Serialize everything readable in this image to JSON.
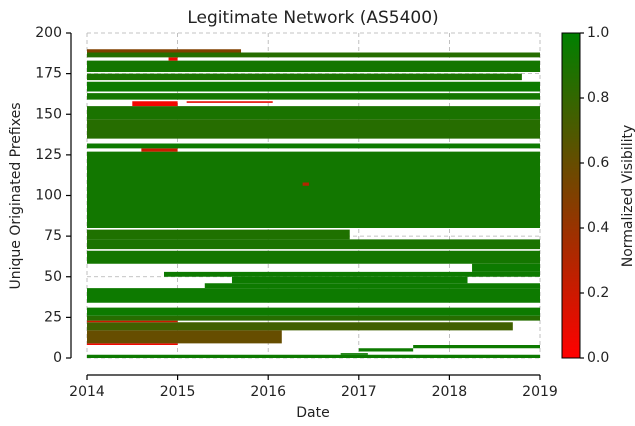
{
  "chart_data": {
    "type": "segments",
    "title": "Legitimate Network (AS5400)",
    "x_label": "Date",
    "y_label": "Unique Originated Prefixes",
    "colorbar_label": "Normalized Visibility",
    "cmap": [
      "#ff0000",
      "#008000"
    ],
    "clim": [
      0,
      1
    ],
    "cticks": [
      {
        "value": 0,
        "label": "0.0"
      },
      {
        "value": 0.2,
        "label": "0.2"
      },
      {
        "value": 0.4,
        "label": "0.4"
      },
      {
        "value": 0.6,
        "label": "0.6"
      },
      {
        "value": 0.8,
        "label": "0.8"
      },
      {
        "value": 1,
        "label": "1.0"
      }
    ],
    "xlim": [
      2014,
      2019
    ],
    "xticks": [
      2014,
      2015,
      2016,
      2017,
      2018,
      2019
    ],
    "ylim": [
      0,
      200
    ],
    "yticks": [
      0,
      25,
      50,
      75,
      100,
      125,
      150,
      175,
      200
    ],
    "grid": true,
    "segments": [
      {
        "x0": 2014,
        "x1": 2019,
        "y0": 0,
        "y1": 2,
        "v": 0.95
      },
      {
        "x0": 2016.8,
        "x1": 2017.1,
        "y0": 2,
        "y1": 3,
        "v": 0.95
      },
      {
        "x0": 2017.0,
        "x1": 2017.6,
        "y0": 4,
        "y1": 6,
        "v": 0.95
      },
      {
        "x0": 2017.6,
        "x1": 2019,
        "y0": 6,
        "y1": 8,
        "v": 0.95
      },
      {
        "x0": 2014,
        "x1": 2015,
        "y0": 8,
        "y1": 9,
        "v": 0.05
      },
      {
        "x0": 2014,
        "x1": 2016.15,
        "y0": 9,
        "y1": 17,
        "v": 0.6
      },
      {
        "x0": 2014,
        "x1": 2018.7,
        "y0": 17,
        "y1": 22,
        "v": 0.75
      },
      {
        "x0": 2014,
        "x1": 2015,
        "y0": 22,
        "y1": 23,
        "v": 0.2
      },
      {
        "x0": 2014,
        "x1": 2019,
        "y0": 23,
        "y1": 26,
        "v": 0.85
      },
      {
        "x0": 2014,
        "x1": 2019,
        "y0": 26,
        "y1": 31,
        "v": 0.95
      },
      {
        "x0": 2014,
        "x1": 2019,
        "y0": 34,
        "y1": 43,
        "v": 0.95
      },
      {
        "x0": 2015.3,
        "x1": 2019,
        "y0": 43,
        "y1": 46,
        "v": 0.95
      },
      {
        "x0": 2015.6,
        "x1": 2018.2,
        "y0": 46,
        "y1": 50,
        "v": 0.95
      },
      {
        "x0": 2014.85,
        "x1": 2019,
        "y0": 50,
        "y1": 53,
        "v": 0.95
      },
      {
        "x0": 2018.25,
        "x1": 2019,
        "y0": 53,
        "y1": 58,
        "v": 0.95
      },
      {
        "x0": 2014,
        "x1": 2019,
        "y0": 58,
        "y1": 66,
        "v": 0.92
      },
      {
        "x0": 2014,
        "x1": 2019,
        "y0": 67,
        "y1": 73,
        "v": 0.9
      },
      {
        "x0": 2014,
        "x1": 2016.9,
        "y0": 73,
        "y1": 79,
        "v": 0.88
      },
      {
        "x0": 2014,
        "x1": 2019,
        "y0": 80,
        "y1": 127,
        "v": 0.93
      },
      {
        "x0": 2016.38,
        "x1": 2016.45,
        "y0": 106,
        "y1": 108,
        "v": 0.3
      },
      {
        "x0": 2014.6,
        "x1": 2015,
        "y0": 127,
        "y1": 129,
        "v": 0.2
      },
      {
        "x0": 2014,
        "x1": 2019,
        "y0": 129,
        "y1": 132,
        "v": 0.95
      },
      {
        "x0": 2014,
        "x1": 2019,
        "y0": 135,
        "y1": 147,
        "v": 0.85
      },
      {
        "x0": 2014,
        "x1": 2019,
        "y0": 147,
        "y1": 155,
        "v": 0.9
      },
      {
        "x0": 2014.5,
        "x1": 2015,
        "y0": 155,
        "y1": 158,
        "v": 0.05
      },
      {
        "x0": 2015.1,
        "x1": 2016.05,
        "y0": 157,
        "y1": 158,
        "v": 0.1
      },
      {
        "x0": 2014,
        "x1": 2019,
        "y0": 159,
        "y1": 163,
        "v": 0.92
      },
      {
        "x0": 2014,
        "x1": 2019,
        "y0": 164,
        "y1": 170,
        "v": 0.95
      },
      {
        "x0": 2014,
        "x1": 2018.8,
        "y0": 171,
        "y1": 175,
        "v": 0.9
      },
      {
        "x0": 2014,
        "x1": 2019,
        "y0": 176,
        "y1": 183,
        "v": 0.92
      },
      {
        "x0": 2014.9,
        "x1": 2015,
        "y0": 183,
        "y1": 185,
        "v": 0.05
      },
      {
        "x0": 2014,
        "x1": 2019,
        "y0": 185,
        "y1": 188,
        "v": 0.85
      },
      {
        "x0": 2014,
        "x1": 2015.7,
        "y0": 188,
        "y1": 190,
        "v": 0.5
      }
    ]
  }
}
